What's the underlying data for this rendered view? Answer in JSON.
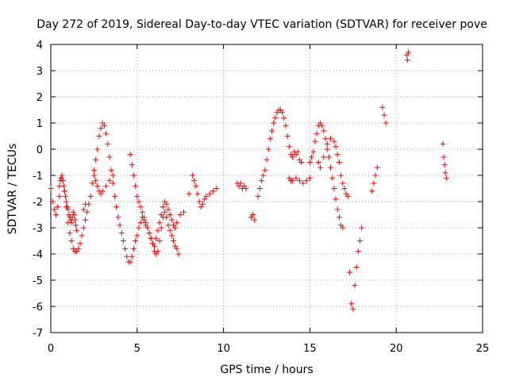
{
  "chart_data": {
    "type": "scatter",
    "title": "Day 272 of 2019, Sidereal Day-to-day VTEC variation (SDTVAR) for receiver pove",
    "xlabel": "GPS time / hours",
    "ylabel": "SDTVAR / TECUs",
    "xlim": [
      0,
      25
    ],
    "ylim": [
      -7,
      4
    ],
    "xticks": [
      "0",
      "5",
      "10",
      "15",
      "20",
      "25"
    ],
    "yticks": [
      "-7",
      "-6",
      "-5",
      "-4",
      "-3",
      "-2",
      "-1",
      "0",
      "1",
      "2",
      "3",
      "4"
    ],
    "grid": true,
    "marker": "+",
    "color": "#ff0000",
    "series": [
      {
        "name": "SDTVAR",
        "x": [
          0.0,
          0.1,
          0.2,
          0.3,
          0.4,
          0.5,
          0.6,
          0.7,
          0.8,
          0.9,
          1.0,
          1.1,
          1.2,
          1.3,
          1.4,
          1.5,
          1.6,
          1.7,
          1.8,
          1.9,
          2.0,
          2.1,
          2.2,
          2.3,
          2.4,
          2.5,
          2.6,
          2.7,
          2.8,
          2.9,
          3.0,
          3.1,
          3.2,
          3.3,
          3.4,
          3.5,
          3.6,
          3.7,
          3.8,
          3.9,
          4.0,
          4.1,
          4.2,
          4.3,
          4.4,
          4.5,
          4.6,
          4.7,
          4.8,
          4.9,
          5.0,
          5.1,
          5.2,
          5.3,
          5.4,
          5.5,
          5.6,
          5.7,
          5.8,
          5.9,
          6.0,
          6.1,
          6.2,
          6.3,
          6.4,
          6.5,
          6.6,
          6.7,
          6.8,
          6.9,
          7.0,
          7.1,
          7.2,
          7.3,
          7.4,
          0.5,
          0.55,
          0.6,
          0.65,
          0.7,
          0.75,
          0.8,
          0.85,
          0.9,
          0.95,
          1.0,
          1.05,
          1.1,
          1.15,
          1.2,
          1.25,
          1.3,
          1.35,
          1.4,
          1.45,
          1.5,
          1.9,
          2.0,
          2.5,
          2.6,
          2.7,
          2.8,
          2.9,
          3.0,
          3.2,
          3.4,
          3.6,
          4.6,
          4.7,
          4.8,
          4.9,
          5.0,
          5.1,
          5.2,
          5.3,
          5.4,
          5.5,
          5.6,
          5.7,
          5.8,
          5.9,
          6.0,
          6.1,
          6.2,
          6.3,
          6.4,
          6.5,
          6.6,
          6.7,
          6.8,
          6.9,
          7.0,
          7.1,
          7.2,
          7.3,
          7.5,
          7.7,
          8.0,
          8.2,
          8.3,
          8.4,
          8.5,
          8.6,
          8.7,
          8.8,
          8.9,
          9.0,
          9.2,
          9.4,
          9.6,
          10.8,
          10.9,
          11.0,
          11.1,
          11.2,
          11.3,
          11.6,
          11.7,
          11.8,
          12.0,
          12.1,
          12.2,
          12.3,
          12.4,
          12.5,
          12.6,
          12.7,
          12.8,
          12.9,
          13.0,
          13.1,
          13.2,
          13.3,
          13.4,
          13.5,
          13.6,
          13.7,
          13.8,
          13.9,
          14.0,
          14.1,
          14.2,
          14.3,
          14.4,
          14.5,
          13.8,
          13.9,
          14.0,
          14.2,
          14.4,
          14.6,
          14.8,
          15.0,
          15.0,
          15.1,
          15.2,
          15.3,
          15.4,
          15.5,
          15.6,
          15.7,
          15.8,
          15.9,
          16.0,
          16.1,
          16.2,
          16.3,
          16.4,
          16.5,
          16.6,
          16.7,
          16.8,
          16.9,
          17.0,
          17.1,
          17.2,
          15.5,
          15.6,
          15.8,
          16.0,
          16.2,
          16.4,
          16.5,
          16.6,
          16.7,
          16.8,
          16.9,
          17.3,
          17.4,
          17.5,
          17.6,
          17.7,
          17.8,
          17.9,
          18.0,
          18.6,
          18.7,
          18.8,
          18.9,
          19.2,
          19.3,
          19.4,
          20.6,
          20.65,
          20.7,
          22.7,
          22.75,
          22.8,
          22.85,
          22.9
        ],
        "y": [
          -1.5,
          -2.0,
          -2.3,
          -2.5,
          -2.2,
          -1.8,
          -1.1,
          -1.2,
          -1.6,
          -2.2,
          -2.8,
          -3.2,
          -3.5,
          -3.8,
          -3.9,
          -3.9,
          -3.8,
          -3.6,
          -3.3,
          -3.0,
          -2.7,
          -2.4,
          -2.1,
          -1.8,
          -1.3,
          -0.8,
          -0.4,
          0.0,
          0.5,
          0.8,
          1.0,
          0.9,
          0.6,
          0.2,
          -0.3,
          -0.8,
          -1.3,
          -1.8,
          -2.2,
          -2.6,
          -2.9,
          -3.2,
          -3.5,
          -3.8,
          -4.1,
          -4.3,
          -4.3,
          -4.1,
          -3.8,
          -3.5,
          -3.3,
          -3.0,
          -2.8,
          -2.6,
          -2.7,
          -2.9,
          -3.0,
          -3.2,
          -3.4,
          -3.6,
          -3.9,
          -4.0,
          -3.9,
          -3.5,
          -3.0,
          -2.6,
          -2.4,
          -2.6,
          -2.9,
          -3.1,
          -3.3,
          -3.5,
          -3.7,
          -3.8,
          -4.0,
          -1.4,
          -1.2,
          -1.1,
          -1.0,
          -1.2,
          -1.4,
          -1.6,
          -1.8,
          -2.0,
          -2.2,
          -2.3,
          -2.5,
          -2.6,
          -2.7,
          -2.8,
          -2.6,
          -2.4,
          -2.5,
          -2.7,
          -2.9,
          -3.1,
          -2.3,
          -2.1,
          -1.0,
          -1.2,
          -1.4,
          -1.6,
          -1.7,
          -1.6,
          -1.4,
          -1.2,
          -1.0,
          -0.2,
          -0.6,
          -1.0,
          -1.4,
          -1.8,
          -2.0,
          -2.2,
          -2.4,
          -2.6,
          -2.8,
          -3.0,
          -3.2,
          -3.4,
          -3.6,
          -3.7,
          -3.4,
          -3.1,
          -2.8,
          -2.5,
          -2.2,
          -2.0,
          -2.1,
          -2.3,
          -2.5,
          -2.7,
          -2.9,
          -3.0,
          -2.8,
          -2.5,
          -2.4,
          -1.7,
          -1.0,
          -1.2,
          -1.4,
          -1.7,
          -2.0,
          -2.2,
          -2.1,
          -1.9,
          -1.8,
          -1.7,
          -1.6,
          -1.5,
          -1.3,
          -1.4,
          -1.3,
          -1.5,
          -1.4,
          -1.5,
          -2.6,
          -2.5,
          -2.7,
          -1.8,
          -1.5,
          -1.2,
          -1.0,
          -0.8,
          -0.4,
          0.0,
          0.4,
          0.7,
          1.0,
          1.2,
          1.4,
          1.5,
          1.5,
          1.4,
          1.2,
          0.9,
          0.5,
          0.1,
          -0.2,
          -0.3,
          -0.1,
          -0.2,
          -0.1,
          -0.4,
          -0.5,
          -1.1,
          -1.2,
          -1.2,
          -1.1,
          -1.2,
          -1.3,
          -1.2,
          -1.1,
          -0.5,
          -0.3,
          -0.1,
          0.3,
          0.6,
          0.9,
          1.0,
          0.9,
          0.7,
          0.4,
          0.0,
          -0.3,
          -0.7,
          -1.1,
          -1.5,
          -1.9,
          -2.3,
          -2.6,
          -2.9,
          -3.0,
          -1.5,
          -1.7,
          -1.8,
          -0.5,
          -0.7,
          -0.3,
          0.2,
          0.4,
          0.3,
          0.1,
          -0.2,
          -0.5,
          -1.0,
          -1.3,
          -4.7,
          -5.9,
          -6.1,
          -5.2,
          -4.5,
          -3.9,
          -3.5,
          -3.0,
          -1.6,
          -1.3,
          -1.0,
          -0.7,
          1.6,
          1.3,
          1.0,
          3.6,
          3.4,
          3.7,
          0.2,
          -0.3,
          -0.6,
          -0.9,
          -1.1
        ]
      }
    ]
  }
}
